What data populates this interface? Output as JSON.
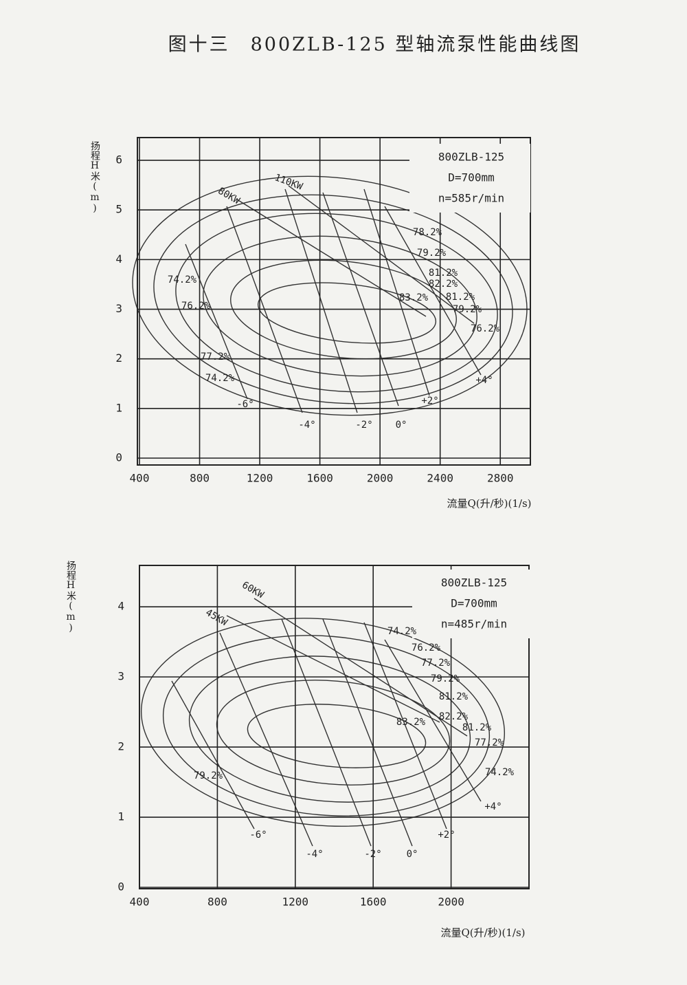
{
  "title": "图十三　800ZLB-125 型轴流泵性能曲线图",
  "chart_data": [
    {
      "type": "performance",
      "y_label": "扬程H米(m)",
      "x_label": "流量Q(升/秒)(1/s)",
      "info": [
        "800ZLB-125",
        "D=700mm",
        "n=585r/min"
      ],
      "annotations": [
        "80KW",
        "110KW",
        "78.2%",
        "79.2%",
        "81.2%",
        "82.2%",
        "83.2%",
        "81.2%",
        "79.2%",
        "76.2%",
        "74.2%",
        "76.2%",
        "77.2%",
        "74.2%",
        "-6°",
        "-4°",
        "-2°",
        "0°",
        "+2°",
        "+4°"
      ],
      "xlim": [
        400,
        3000
      ],
      "xticks": [
        400,
        800,
        1200,
        1600,
        2000,
        2400,
        2800
      ],
      "ylim": [
        0,
        6.5
      ],
      "yticks": [
        0,
        1,
        2,
        3,
        4,
        5,
        6
      ],
      "grid": true
    },
    {
      "type": "performance",
      "y_label": "扬程H米(m)",
      "x_label": "流量Q(升/秒)(1/s)",
      "info": [
        "800ZLB-125",
        "D=700mm",
        "n=485r/min"
      ],
      "annotations": [
        "60KW",
        "45KW",
        "74.2%",
        "76.2%",
        "77.2%",
        "79.2%",
        "81.2%",
        "82.2%",
        "83.2%",
        "81.2%",
        "77.2%",
        "74.2%",
        "79.2%",
        "-6°",
        "-4°",
        "-2°",
        "0°",
        "+2°",
        "+4°"
      ],
      "xlim": [
        400,
        2400
      ],
      "xticks": [
        400,
        800,
        1200,
        1600,
        2000
      ],
      "ylim": [
        0,
        4.6
      ],
      "yticks": [
        0,
        1,
        2,
        3,
        4
      ],
      "grid": true
    }
  ]
}
